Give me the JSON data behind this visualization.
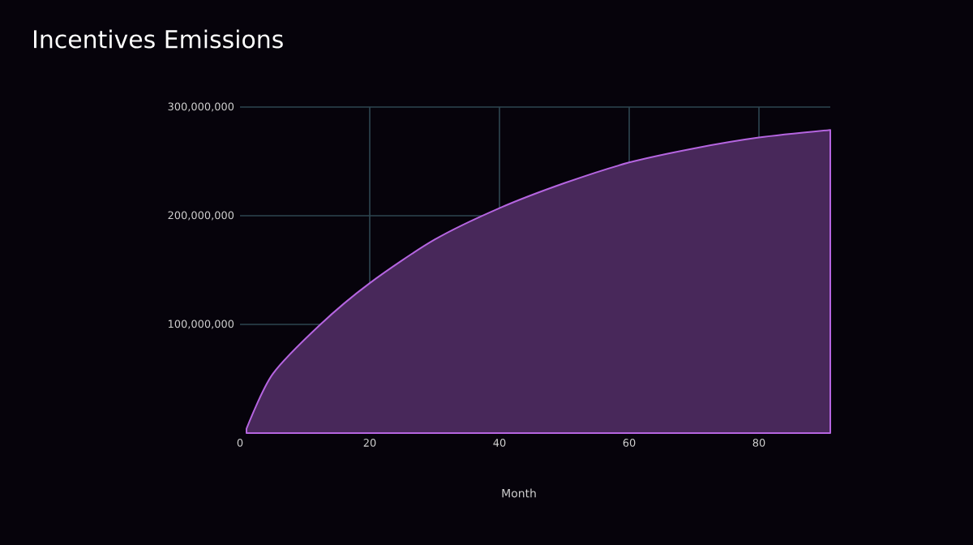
{
  "chart_data": {
    "type": "area",
    "title": "Incentives Emissions",
    "xlabel": "Month",
    "x": [
      1,
      5,
      12.4,
      20,
      30,
      40,
      50,
      60,
      70,
      80,
      91
    ],
    "values": [
      4000000,
      54000000,
      100000000,
      138000000,
      178000000,
      207000000,
      230000000,
      249000000,
      262000000,
      272000000,
      279000000
    ],
    "color": "#b565e0",
    "xlim": [
      0,
      91
    ],
    "ylim": [
      0,
      300000000
    ],
    "xticks": [
      0,
      20,
      40,
      60,
      80
    ],
    "yticks": [
      {
        "value": 100000000,
        "label": "100,000,000"
      },
      {
        "value": 200000000,
        "label": "200,000,000"
      },
      {
        "value": 300000000,
        "label": "300,000,000"
      }
    ],
    "grid": true
  }
}
